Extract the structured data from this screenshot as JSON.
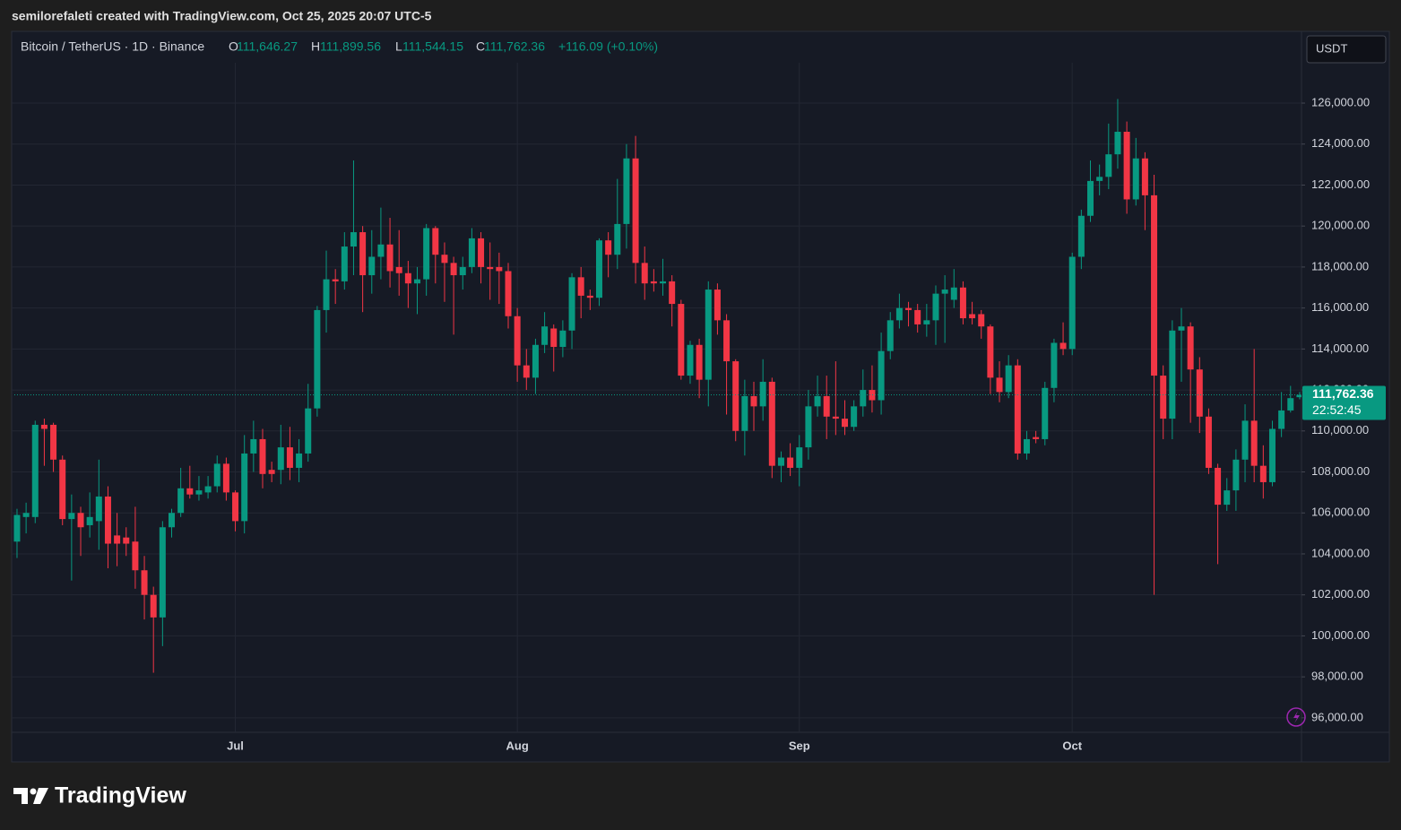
{
  "attribution": "semilorefaleti created with TradingView.com, Oct 25, 2025 20:07 UTC-5",
  "brand": "TradingView",
  "chart_data": {
    "type": "candlestick",
    "symbol": "Bitcoin / TetherUS · 1D · Binance",
    "legend": {
      "o_label": "O",
      "o": "111,646.27",
      "h_label": "H",
      "h": "111,899.56",
      "l_label": "L",
      "l": "111,544.15",
      "c_label": "C",
      "c": "111,762.36",
      "change": "+116.09 (+0.10%)"
    },
    "currency": "USDT",
    "price_label": "111,762.36",
    "countdown": "22:52:45",
    "up_color": "#089981",
    "down_color": "#f23645",
    "grid": true,
    "ylim": [
      95250,
      129500
    ],
    "yticks": [
      {
        "value": 96000,
        "label": "96,000.00"
      },
      {
        "value": 98000,
        "label": "98,000.00"
      },
      {
        "value": 100000,
        "label": "100,000.00"
      },
      {
        "value": 102000,
        "label": "102,000.00"
      },
      {
        "value": 104000,
        "label": "104,000.00"
      },
      {
        "value": 106000,
        "label": "106,000.00"
      },
      {
        "value": 108000,
        "label": "108,000.00"
      },
      {
        "value": 110000,
        "label": "110,000.00"
      },
      {
        "value": 112000,
        "label": "112,000.00"
      },
      {
        "value": 114000,
        "label": "114,000.00"
      },
      {
        "value": 116000,
        "label": "116,000.00"
      },
      {
        "value": 118000,
        "label": "118,000.00"
      },
      {
        "value": 120000,
        "label": "120,000.00"
      },
      {
        "value": 122000,
        "label": "122,000.00"
      },
      {
        "value": 124000,
        "label": "124,000.00"
      },
      {
        "value": 126000,
        "label": "126,000.00"
      }
    ],
    "categories": [
      null,
      null,
      null,
      null,
      null,
      null,
      null,
      null,
      null,
      null,
      null,
      null,
      null,
      null,
      null,
      null,
      null,
      null,
      null,
      null,
      null,
      null,
      null,
      null,
      "Jul",
      null,
      null,
      null,
      null,
      null,
      null,
      null,
      null,
      null,
      null,
      null,
      null,
      null,
      null,
      null,
      null,
      null,
      null,
      null,
      null,
      null,
      null,
      null,
      null,
      null,
      null,
      null,
      null,
      null,
      null,
      "Aug",
      null,
      null,
      null,
      null,
      null,
      null,
      null,
      null,
      null,
      null,
      null,
      null,
      null,
      null,
      null,
      null,
      null,
      null,
      null,
      null,
      null,
      null,
      null,
      null,
      null,
      null,
      null,
      null,
      null,
      null,
      "Sep",
      null,
      null,
      null,
      null,
      null,
      null,
      null,
      null,
      null,
      null,
      null,
      null,
      null,
      null,
      null,
      null,
      null,
      null,
      null,
      null,
      null,
      null,
      null,
      null,
      null,
      null,
      null,
      null,
      null,
      "Oct",
      null,
      null,
      null,
      null,
      null,
      null,
      null,
      null,
      null,
      null,
      null,
      null,
      null,
      null,
      null,
      null,
      null,
      null,
      null,
      null,
      null,
      null,
      null,
      null,
      null
    ],
    "open": [
      104600,
      105800,
      105800,
      110300,
      110300,
      108600,
      105700,
      106000,
      105400,
      105600,
      106800,
      104900,
      104800,
      104600,
      103200,
      102000,
      100900,
      105300,
      106000,
      107200,
      106900,
      107000,
      107300,
      108400,
      107000,
      105600,
      108900,
      109600,
      108100,
      108100,
      109200,
      108200,
      108900,
      111100,
      115900,
      117400,
      117300,
      119000,
      119700,
      117600,
      118500,
      119100,
      118000,
      117700,
      117200,
      117400,
      119900,
      118600,
      118200,
      117600,
      118000,
      119400,
      118000,
      118000,
      117800,
      115600,
      113200,
      112600,
      114200,
      115000,
      114100,
      114900,
      117500,
      116600,
      116500,
      119300,
      118600,
      120100,
      123300,
      118200,
      117300,
      117200,
      117300,
      116200,
      112700,
      114200,
      112500,
      116900,
      115400,
      113400,
      110000,
      111700,
      111200,
      112400,
      108300,
      108700,
      108200,
      109200,
      111200,
      111700,
      110700,
      110600,
      110200,
      111200,
      112000,
      111500,
      113900,
      115400,
      116000,
      115900,
      115200,
      115400,
      116700,
      116400,
      117000,
      115700,
      115700,
      115100,
      112600,
      111900,
      113200,
      108900,
      109700,
      109600,
      112100,
      114300,
      114000,
      118500,
      120500,
      122200,
      122400,
      123500,
      124600,
      121300,
      123300,
      121500,
      112700,
      110600,
      114900,
      115100,
      113000,
      110700,
      108200,
      106400,
      107100,
      108600,
      110500,
      108300,
      107500,
      110100,
      111000,
      111646.27
    ],
    "high": [
      106200,
      106500,
      110500,
      110600,
      110400,
      108800,
      106900,
      106300,
      107000,
      108600,
      107300,
      106000,
      105300,
      106300,
      103900,
      102400,
      105600,
      106200,
      108200,
      108300,
      107800,
      107800,
      108800,
      108700,
      107100,
      109800,
      110500,
      110100,
      108500,
      110300,
      110200,
      109600,
      112300,
      116100,
      118800,
      117900,
      119700,
      123200,
      120000,
      119800,
      120900,
      120400,
      119800,
      118300,
      118000,
      120100,
      120000,
      119200,
      118500,
      118500,
      119900,
      119700,
      119200,
      118700,
      118200,
      116000,
      114000,
      114500,
      115800,
      115200,
      115400,
      117700,
      118000,
      116900,
      119400,
      119700,
      122300,
      124000,
      124400,
      119000,
      117900,
      118400,
      117600,
      116400,
      114400,
      114500,
      117300,
      117200,
      115700,
      113500,
      112500,
      112400,
      113500,
      112600,
      109000,
      109400,
      109800,
      112000,
      112700,
      112700,
      113400,
      111500,
      111500,
      113000,
      113200,
      114800,
      115800,
      116700,
      116300,
      116200,
      116200,
      117100,
      117600,
      117900,
      117300,
      116300,
      115900,
      115200,
      113400,
      113700,
      113500,
      110000,
      110000,
      112400,
      114500,
      115300,
      118700,
      120800,
      123200,
      123000,
      125000,
      126200,
      125100,
      124300,
      123600,
      122500,
      113200,
      115400,
      116000,
      115300,
      113600,
      111100,
      108400,
      107700,
      109100,
      111300,
      114000,
      109300,
      110500,
      111900,
      112200,
      111899.56
    ],
    "low": [
      103800,
      105000,
      105500,
      108300,
      108000,
      105400,
      102700,
      103900,
      104800,
      104200,
      103300,
      103400,
      103900,
      102300,
      100800,
      98200,
      99500,
      104800,
      105800,
      106700,
      106600,
      106700,
      107000,
      106600,
      105100,
      105000,
      108000,
      107200,
      107500,
      107400,
      107600,
      107500,
      108500,
      110700,
      114800,
      116200,
      116900,
      117600,
      115800,
      116700,
      117400,
      117000,
      116600,
      116000,
      115700,
      116600,
      117200,
      116300,
      114700,
      116900,
      117700,
      117200,
      116400,
      116200,
      115000,
      112400,
      112000,
      111800,
      113800,
      112900,
      113600,
      114000,
      115500,
      115900,
      116100,
      117500,
      117900,
      118900,
      117200,
      116400,
      116800,
      116600,
      115100,
      112500,
      112300,
      111600,
      111200,
      114700,
      110800,
      109500,
      108800,
      110000,
      110500,
      107700,
      107500,
      107800,
      107300,
      108600,
      110700,
      109600,
      109800,
      109800,
      110000,
      110700,
      110900,
      110800,
      113500,
      115000,
      115100,
      114800,
      114600,
      114200,
      114300,
      116000,
      115200,
      115200,
      114500,
      111800,
      111400,
      111600,
      108600,
      108600,
      109400,
      109300,
      111400,
      113700,
      113700,
      117900,
      120200,
      121500,
      121800,
      122800,
      120600,
      121000,
      119800,
      102000,
      109600,
      109600,
      112400,
      110400,
      109900,
      107900,
      103500,
      106100,
      106100,
      107500,
      107500,
      106700,
      107300,
      109700,
      110900,
      111544.15
    ],
    "close": [
      105900,
      106000,
      110300,
      110100,
      108600,
      105700,
      106000,
      105300,
      105800,
      106800,
      104500,
      104500,
      104500,
      103200,
      102000,
      100900,
      105300,
      106000,
      107200,
      106900,
      107100,
      107300,
      108400,
      107000,
      105600,
      108900,
      109600,
      107900,
      107900,
      109200,
      108200,
      108900,
      111100,
      115900,
      117400,
      117300,
      119000,
      119700,
      117600,
      118500,
      119100,
      117800,
      117700,
      117200,
      117400,
      119900,
      118600,
      118200,
      117600,
      118000,
      119400,
      118000,
      117900,
      117800,
      115600,
      113200,
      112600,
      114200,
      115100,
      114100,
      114900,
      117500,
      116600,
      116500,
      119300,
      118600,
      120100,
      123300,
      118200,
      117200,
      117200,
      117300,
      116200,
      112700,
      114200,
      112500,
      116900,
      115400,
      113400,
      110000,
      111700,
      111200,
      112400,
      108300,
      108700,
      108200,
      109200,
      111200,
      111700,
      110700,
      110600,
      110200,
      111200,
      112000,
      111500,
      113900,
      115400,
      116000,
      115900,
      115200,
      115400,
      116700,
      116900,
      117000,
      115500,
      115500,
      115100,
      112600,
      111900,
      113200,
      108900,
      109600,
      109600,
      112100,
      114300,
      114000,
      118500,
      120500,
      122200,
      122400,
      123500,
      124600,
      121300,
      123300,
      121500,
      112700,
      110600,
      114900,
      115100,
      113000,
      110700,
      108200,
      106400,
      107100,
      108600,
      110500,
      108300,
      107500,
      110100,
      111000,
      111600,
      111762.36
    ]
  }
}
